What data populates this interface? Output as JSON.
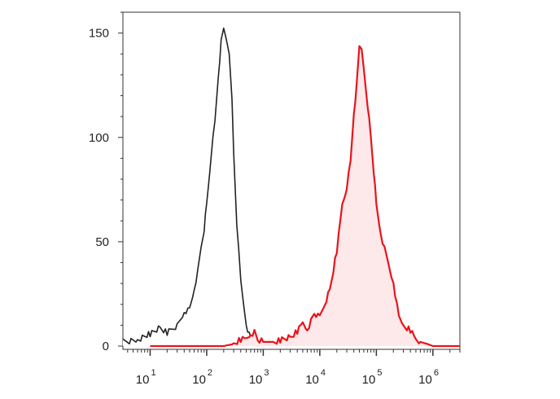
{
  "chart_data": {
    "type": "area",
    "x_scale": "log",
    "xlim": [
      3.3,
      3000000
    ],
    "ylim": [
      0,
      160
    ],
    "grid": false,
    "legend": "none",
    "y_ticks": [
      {
        "value": 0,
        "label": "0"
      },
      {
        "value": 50,
        "label": "50"
      },
      {
        "value": 100,
        "label": "100"
      },
      {
        "value": 150,
        "label": "150"
      }
    ],
    "x_ticks": [
      {
        "value": 10,
        "base": "10",
        "exp": "1"
      },
      {
        "value": 100,
        "base": "10",
        "exp": "2"
      },
      {
        "value": 1000,
        "base": "10",
        "exp": "3"
      },
      {
        "value": 10000,
        "base": "10",
        "exp": "4"
      },
      {
        "value": 100000,
        "base": "10",
        "exp": "5"
      },
      {
        "value": 1000000,
        "base": "10",
        "exp": "6"
      }
    ],
    "series": [
      {
        "color": "#222222",
        "fill": "#ffffff",
        "x": [
          3.3,
          6,
          10,
          15,
          20,
          30,
          40,
          50,
          60,
          70,
          80,
          90,
          100,
          120,
          140,
          160,
          180,
          200,
          220,
          250,
          280,
          300,
          340,
          400,
          500,
          600,
          700,
          800
        ],
        "y": [
          2,
          4,
          5,
          6,
          8,
          10,
          15,
          20,
          28,
          35,
          45,
          58,
          68,
          90,
          110,
          130,
          145,
          150,
          148,
          140,
          118,
          95,
          60,
          30,
          8,
          3,
          2,
          0
        ]
      },
      {
        "color": "#e8141c",
        "fill": "#fde8ea",
        "x": [
          10,
          50,
          100,
          200,
          300,
          400,
          500,
          600,
          700,
          800,
          1000,
          1500,
          2000,
          3000,
          4000,
          5000,
          6000,
          7000,
          8000,
          10000,
          15000,
          20000,
          25000,
          30000,
          35000,
          40000,
          45000,
          50000,
          55000,
          60000,
          70000,
          80000,
          90000,
          100000,
          120000,
          150000,
          200000,
          250000,
          300000,
          400000,
          500000,
          600000,
          800000,
          1000000,
          2000000,
          3000000
        ],
        "y": [
          0,
          0,
          0,
          0,
          1,
          3,
          4,
          5,
          4,
          3,
          2,
          2,
          3,
          5,
          6,
          8,
          10,
          12,
          14,
          16,
          28,
          45,
          65,
          78,
          88,
          110,
          128,
          145,
          140,
          130,
          118,
          100,
          82,
          70,
          55,
          42,
          28,
          15,
          10,
          6,
          3,
          2,
          1,
          0,
          0,
          0
        ]
      }
    ]
  }
}
